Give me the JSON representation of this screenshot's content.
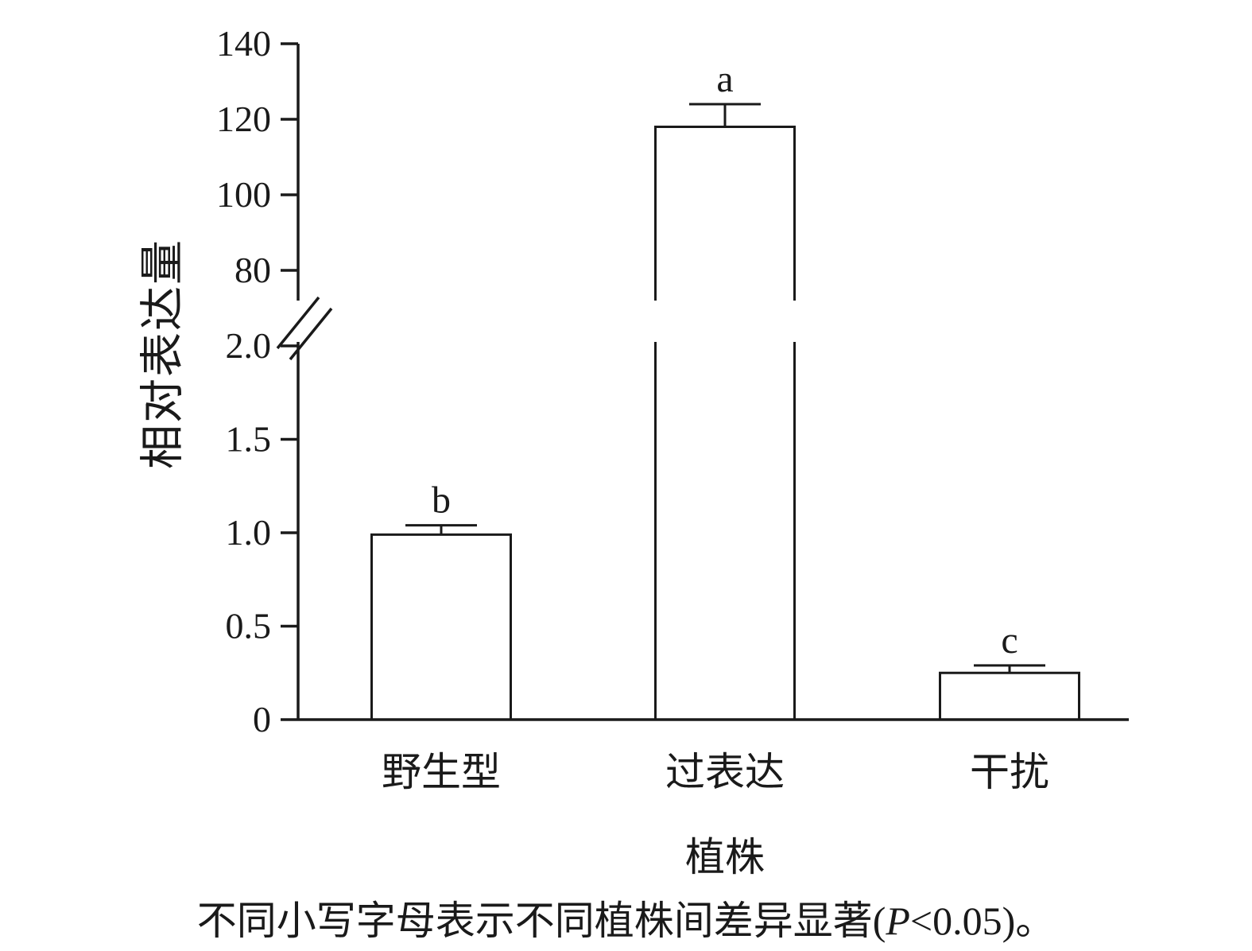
{
  "chart_data": {
    "type": "bar",
    "title": "",
    "categories": [
      "野生型",
      "过表达",
      "干扰"
    ],
    "values": [
      0.99,
      118,
      0.25
    ],
    "errors": [
      0.05,
      6,
      0.04
    ],
    "sig_letters": [
      "b",
      "a",
      "c"
    ],
    "xlabel": "植株",
    "ylabel": "相对表达量",
    "y_axis_break": {
      "lower_range": [
        0,
        2.0
      ],
      "upper_range": [
        80,
        140
      ],
      "lower_ticks": [
        {
          "value": 0,
          "label": "0"
        },
        {
          "value": 0.5,
          "label": "0.5"
        },
        {
          "value": 1.0,
          "label": "1.0"
        },
        {
          "value": 1.5,
          "label": "1.5"
        },
        {
          "value": 2.0,
          "label": "2.0"
        }
      ],
      "upper_ticks": [
        {
          "value": 80,
          "label": "80"
        },
        {
          "value": 100,
          "label": "100"
        },
        {
          "value": 120,
          "label": "120"
        },
        {
          "value": 140,
          "label": "140"
        }
      ]
    },
    "legend": null,
    "grid": false,
    "bar_fill": "#ffffff",
    "line_color": "#1a1a1a",
    "caption": {
      "prefix": "不同小写字母表示不同植株间差异显著(",
      "italic": "P",
      "suffix": "<0.05)。"
    }
  }
}
